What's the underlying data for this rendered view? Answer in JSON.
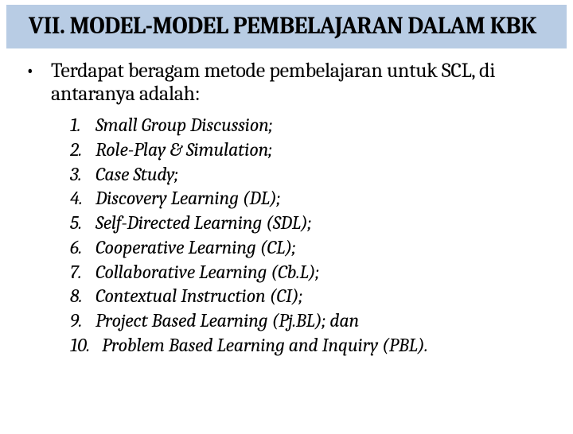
{
  "title": "VII. MODEL-MODEL PEMBELAJARAN DALAM KBK",
  "bullet": "•",
  "intro": "Terdapat beragam metode pembelajaran untuk SCL, di antaranya adalah:",
  "items": [
    {
      "num": "1.",
      "text": "Small Group Discussion;"
    },
    {
      "num": "2.",
      "text": "Role-Play & Simulation;"
    },
    {
      "num": "3.",
      "text": "Case Study;"
    },
    {
      "num": "4.",
      "text": "Discovery Learning (DL);"
    },
    {
      "num": "5.",
      "text": "Self-Directed Learning (SDL);"
    },
    {
      "num": "6.",
      "text": "Cooperative Learning (CL);"
    },
    {
      "num": "7.",
      "text": "Collaborative Learning (Cb.L);"
    },
    {
      "num": "8.",
      "text": "Contextual Instruction (CI);"
    },
    {
      "num": "9.",
      "text": "Project Based Learning (Pj.BL); dan"
    },
    {
      "num": "10.",
      "text": "Problem Based Learning and Inquiry (PBL)."
    }
  ],
  "colors": {
    "title_bg": "#b8cce4",
    "text": "#000000",
    "bg": "#ffffff"
  },
  "typography": {
    "title_fontsize": 30,
    "intro_fontsize": 26,
    "item_fontsize": 24,
    "font_family": "Cambria"
  }
}
